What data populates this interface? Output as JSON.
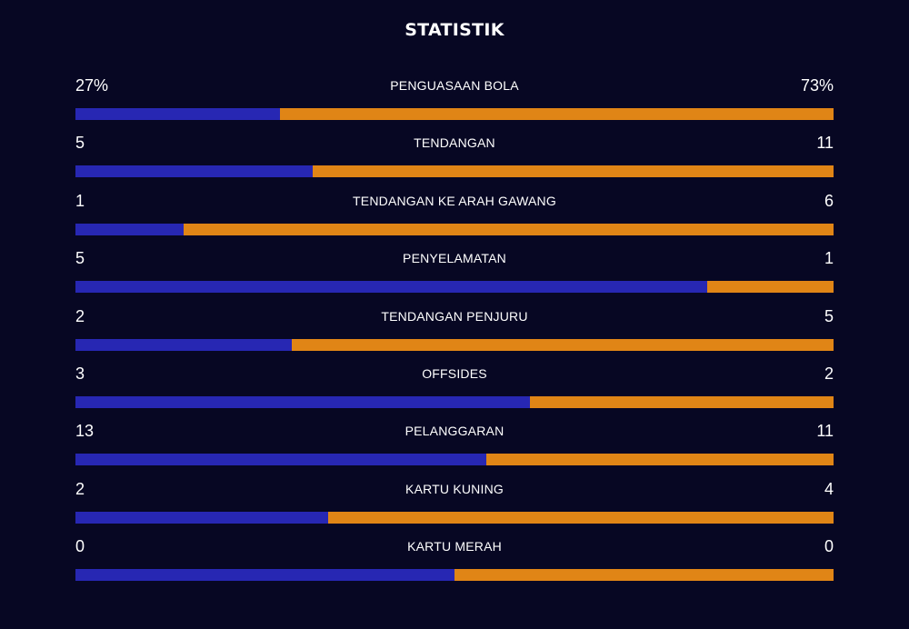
{
  "title": "STATISTIK",
  "colors": {
    "background": "#070723",
    "home_bar": "#2727b3",
    "away_bar": "#e08516",
    "text": "#ffffff"
  },
  "stats": [
    {
      "label": "PENGUASAAN BOLA",
      "home": "27%",
      "away": "73%",
      "home_share": 0.27
    },
    {
      "label": "TENDANGAN",
      "home": "5",
      "away": "11",
      "home_share": 0.3125
    },
    {
      "label": "TENDANGAN KE ARAH GAWANG",
      "home": "1",
      "away": "6",
      "home_share": 0.1429
    },
    {
      "label": "PENYELAMATAN",
      "home": "5",
      "away": "1",
      "home_share": 0.8333
    },
    {
      "label": "TENDANGAN PENJURU",
      "home": "2",
      "away": "5",
      "home_share": 0.2857
    },
    {
      "label": "OFFSIDES",
      "home": "3",
      "away": "2",
      "home_share": 0.6
    },
    {
      "label": "PELANGGARAN",
      "home": "13",
      "away": "11",
      "home_share": 0.5417
    },
    {
      "label": "KARTU KUNING",
      "home": "2",
      "away": "4",
      "home_share": 0.3333
    },
    {
      "label": "KARTU MERAH",
      "home": "0",
      "away": "0",
      "home_share": 0.5
    }
  ]
}
